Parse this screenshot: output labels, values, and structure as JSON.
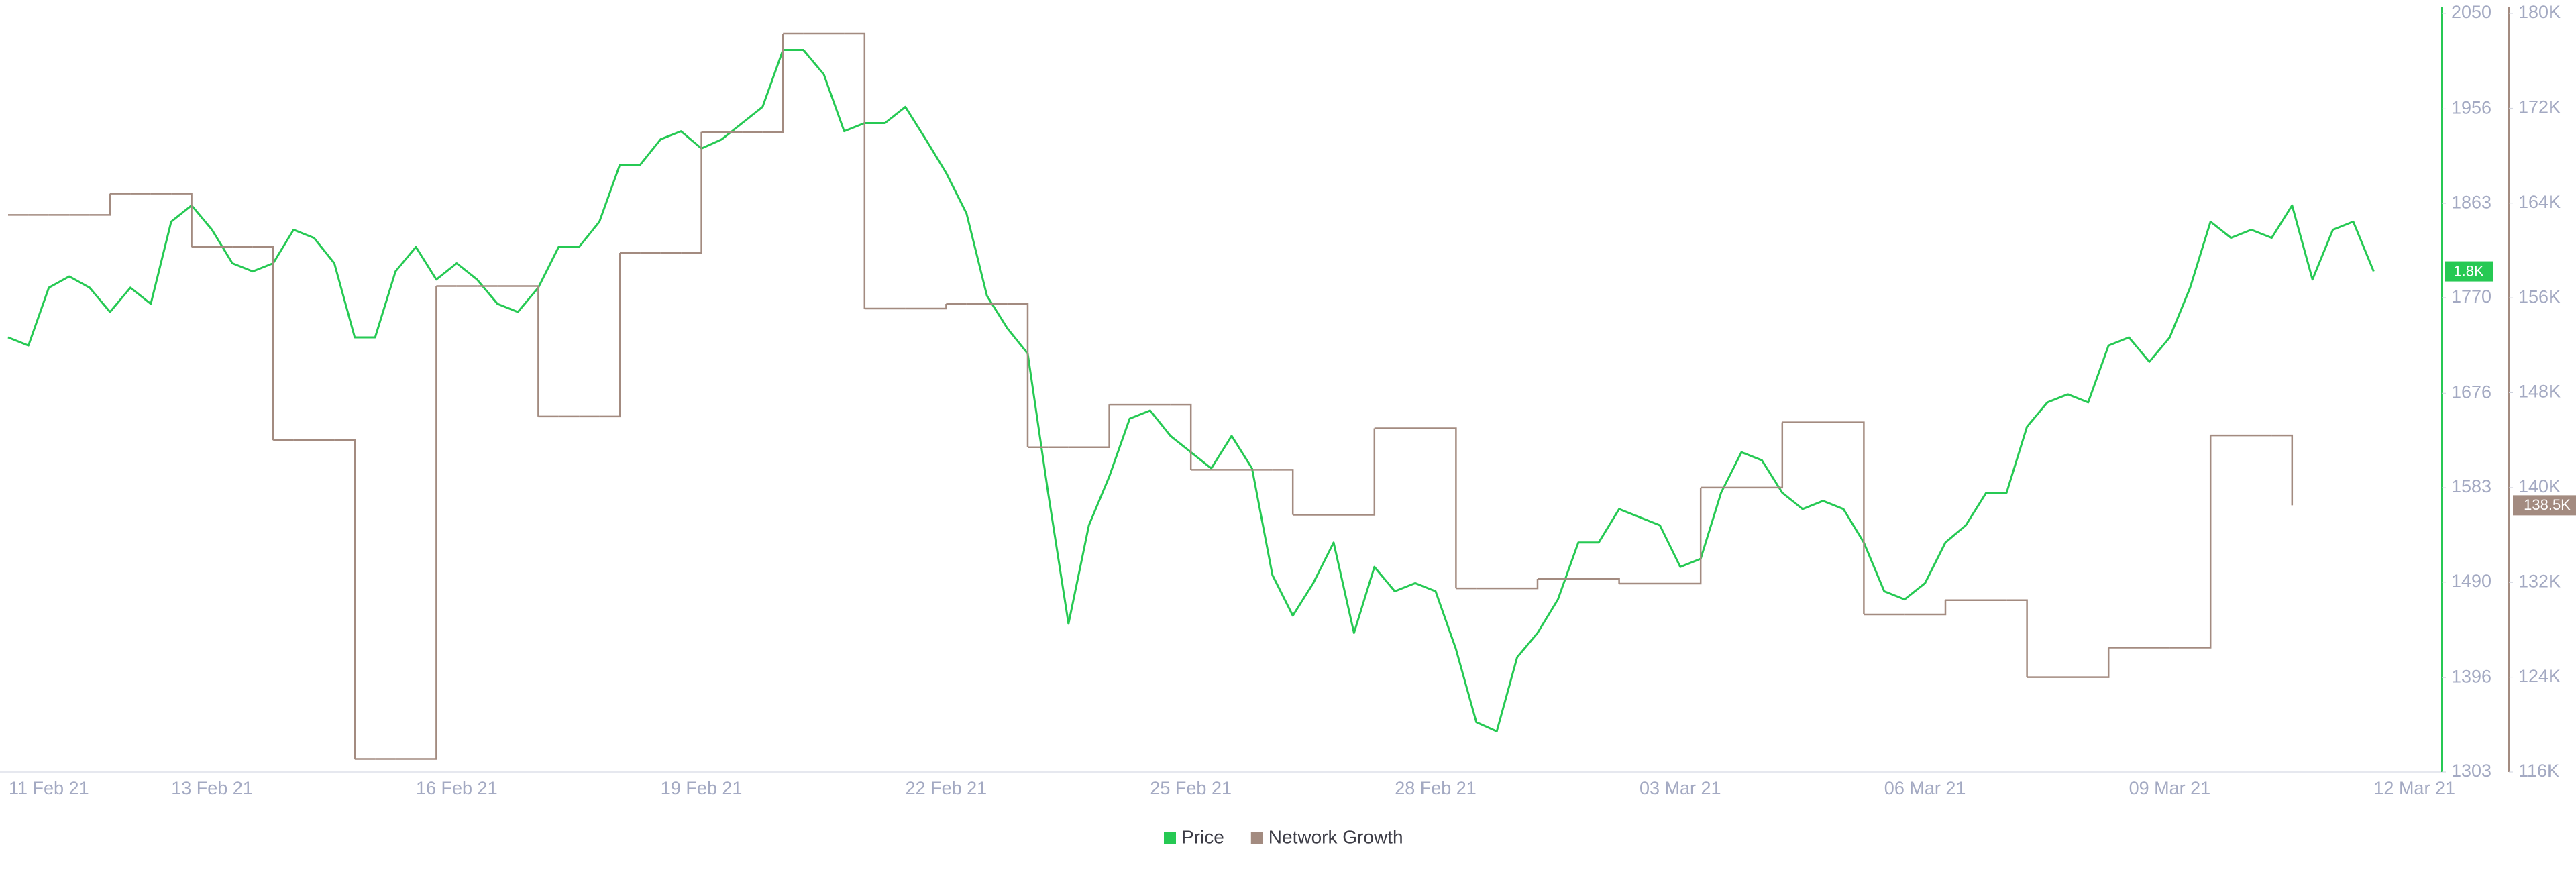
{
  "chart_data": {
    "type": "line",
    "categories": [
      null,
      null,
      "11 Feb 21",
      null,
      null,
      null,
      null,
      null,
      null,
      null,
      "13 Feb 21",
      null,
      null,
      null,
      null,
      null,
      null,
      null,
      null,
      null,
      null,
      null,
      "16 Feb 21",
      null,
      null,
      null,
      null,
      null,
      null,
      null,
      null,
      null,
      null,
      null,
      "19 Feb 21",
      null,
      null,
      null,
      null,
      null,
      null,
      null,
      null,
      null,
      null,
      null,
      "22 Feb 21",
      null,
      null,
      null,
      null,
      null,
      null,
      null,
      null,
      null,
      null,
      null,
      "25 Feb 21",
      null,
      null,
      null,
      null,
      null,
      null,
      null,
      null,
      null,
      null,
      null,
      "28 Feb 21",
      null,
      null,
      null,
      null,
      null,
      null,
      null,
      null,
      null,
      null,
      null,
      "03 Mar 21",
      null,
      null,
      null,
      null,
      null,
      null,
      null,
      null,
      null,
      null,
      null,
      "06 Mar 21",
      null,
      null,
      null,
      null,
      null,
      null,
      null,
      null,
      null,
      null,
      null,
      "09 Mar 21",
      null,
      null,
      null,
      null,
      null,
      null,
      null,
      null,
      null,
      null,
      null,
      "12 Mar 21"
    ],
    "series": [
      {
        "name": "Price",
        "color": "#26c953",
        "axis": "y",
        "end_label": "1.8K",
        "values": [
          1731,
          1723,
          1780,
          1791,
          1780,
          1756,
          1780,
          1764,
          1845,
          1861,
          1837,
          1804,
          1796,
          1804,
          1837,
          1829,
          1804,
          1731,
          1731,
          1796,
          1820,
          1788,
          1804,
          1788,
          1764,
          1756,
          1780,
          1820,
          1820,
          1845,
          1901,
          1901,
          1926,
          1934,
          1917,
          1926,
          1942,
          1958,
          2014,
          2014,
          1990,
          1934,
          1942,
          1942,
          1958,
          1926,
          1893,
          1853,
          1772,
          1740,
          1715,
          1578,
          1449,
          1546,
          1594,
          1651,
          1659,
          1634,
          1618,
          1602,
          1634,
          1602,
          1497,
          1457,
          1489,
          1529,
          1440,
          1505,
          1481,
          1489,
          1481,
          1424,
          1352,
          1343,
          1416,
          1440,
          1473,
          1529,
          1529,
          1562,
          1554,
          1546,
          1505,
          1513,
          1578,
          1618,
          1610,
          1578,
          1562,
          1570,
          1562,
          1529,
          1481,
          1473,
          1489,
          1529,
          1546,
          1578,
          1578,
          1643,
          1667,
          1675,
          1667,
          1723,
          1731,
          1707,
          1731,
          1780,
          1845,
          1829,
          1837,
          1829,
          1861,
          1788,
          1837,
          1845,
          1796,
          null,
          null
        ]
      },
      {
        "name": "Network Growth",
        "color": "#a38b80",
        "axis": "y2",
        "line_shape": "step",
        "end_label": "138.5K",
        "values": [
          163000,
          163000,
          163000,
          163000,
          163000,
          164800,
          164800,
          164800,
          164800,
          160300,
          160300,
          160300,
          160300,
          144000,
          144000,
          144000,
          144000,
          117100,
          117100,
          117100,
          117100,
          157000,
          157000,
          157000,
          157000,
          157000,
          146000,
          146000,
          146000,
          146000,
          159800,
          159800,
          159800,
          159800,
          170000,
          170000,
          170000,
          170000,
          178300,
          178300,
          178300,
          178300,
          155100,
          155100,
          155100,
          155100,
          155500,
          155500,
          155500,
          155500,
          143400,
          143400,
          143400,
          143400,
          147000,
          147000,
          147000,
          147000,
          141500,
          141500,
          141500,
          141500,
          141500,
          137700,
          137700,
          137700,
          137700,
          145000,
          145000,
          145000,
          145000,
          131500,
          131500,
          131500,
          131500,
          132300,
          132300,
          132300,
          132300,
          131900,
          131900,
          131900,
          131900,
          140000,
          140000,
          140000,
          140000,
          145500,
          145500,
          145500,
          145500,
          129300,
          129300,
          129300,
          129300,
          130500,
          130500,
          130500,
          130500,
          124000,
          124000,
          124000,
          124000,
          126500,
          126500,
          126500,
          126500,
          126500,
          144400,
          144400,
          144400,
          144400,
          138500,
          null,
          null,
          null,
          null,
          null,
          null
        ]
      }
    ],
    "ylim": [
      1303,
      2050
    ],
    "yticks": [
      1303,
      1396,
      1490,
      1583,
      1676,
      1770,
      1863,
      1956,
      2050
    ],
    "y2lim": [
      116000,
      180000
    ],
    "y2ticks": [
      {
        "value": 116000,
        "label": "116K"
      },
      {
        "value": 124000,
        "label": "124K"
      },
      {
        "value": 132000,
        "label": "132K"
      },
      {
        "value": 140000,
        "label": "140K"
      },
      {
        "value": 148000,
        "label": "148K"
      },
      {
        "value": 156000,
        "label": "156K"
      },
      {
        "value": 164000,
        "label": "164K"
      },
      {
        "value": 172000,
        "label": "172K"
      },
      {
        "value": 180000,
        "label": "180K"
      }
    ],
    "legend": "bottom"
  }
}
